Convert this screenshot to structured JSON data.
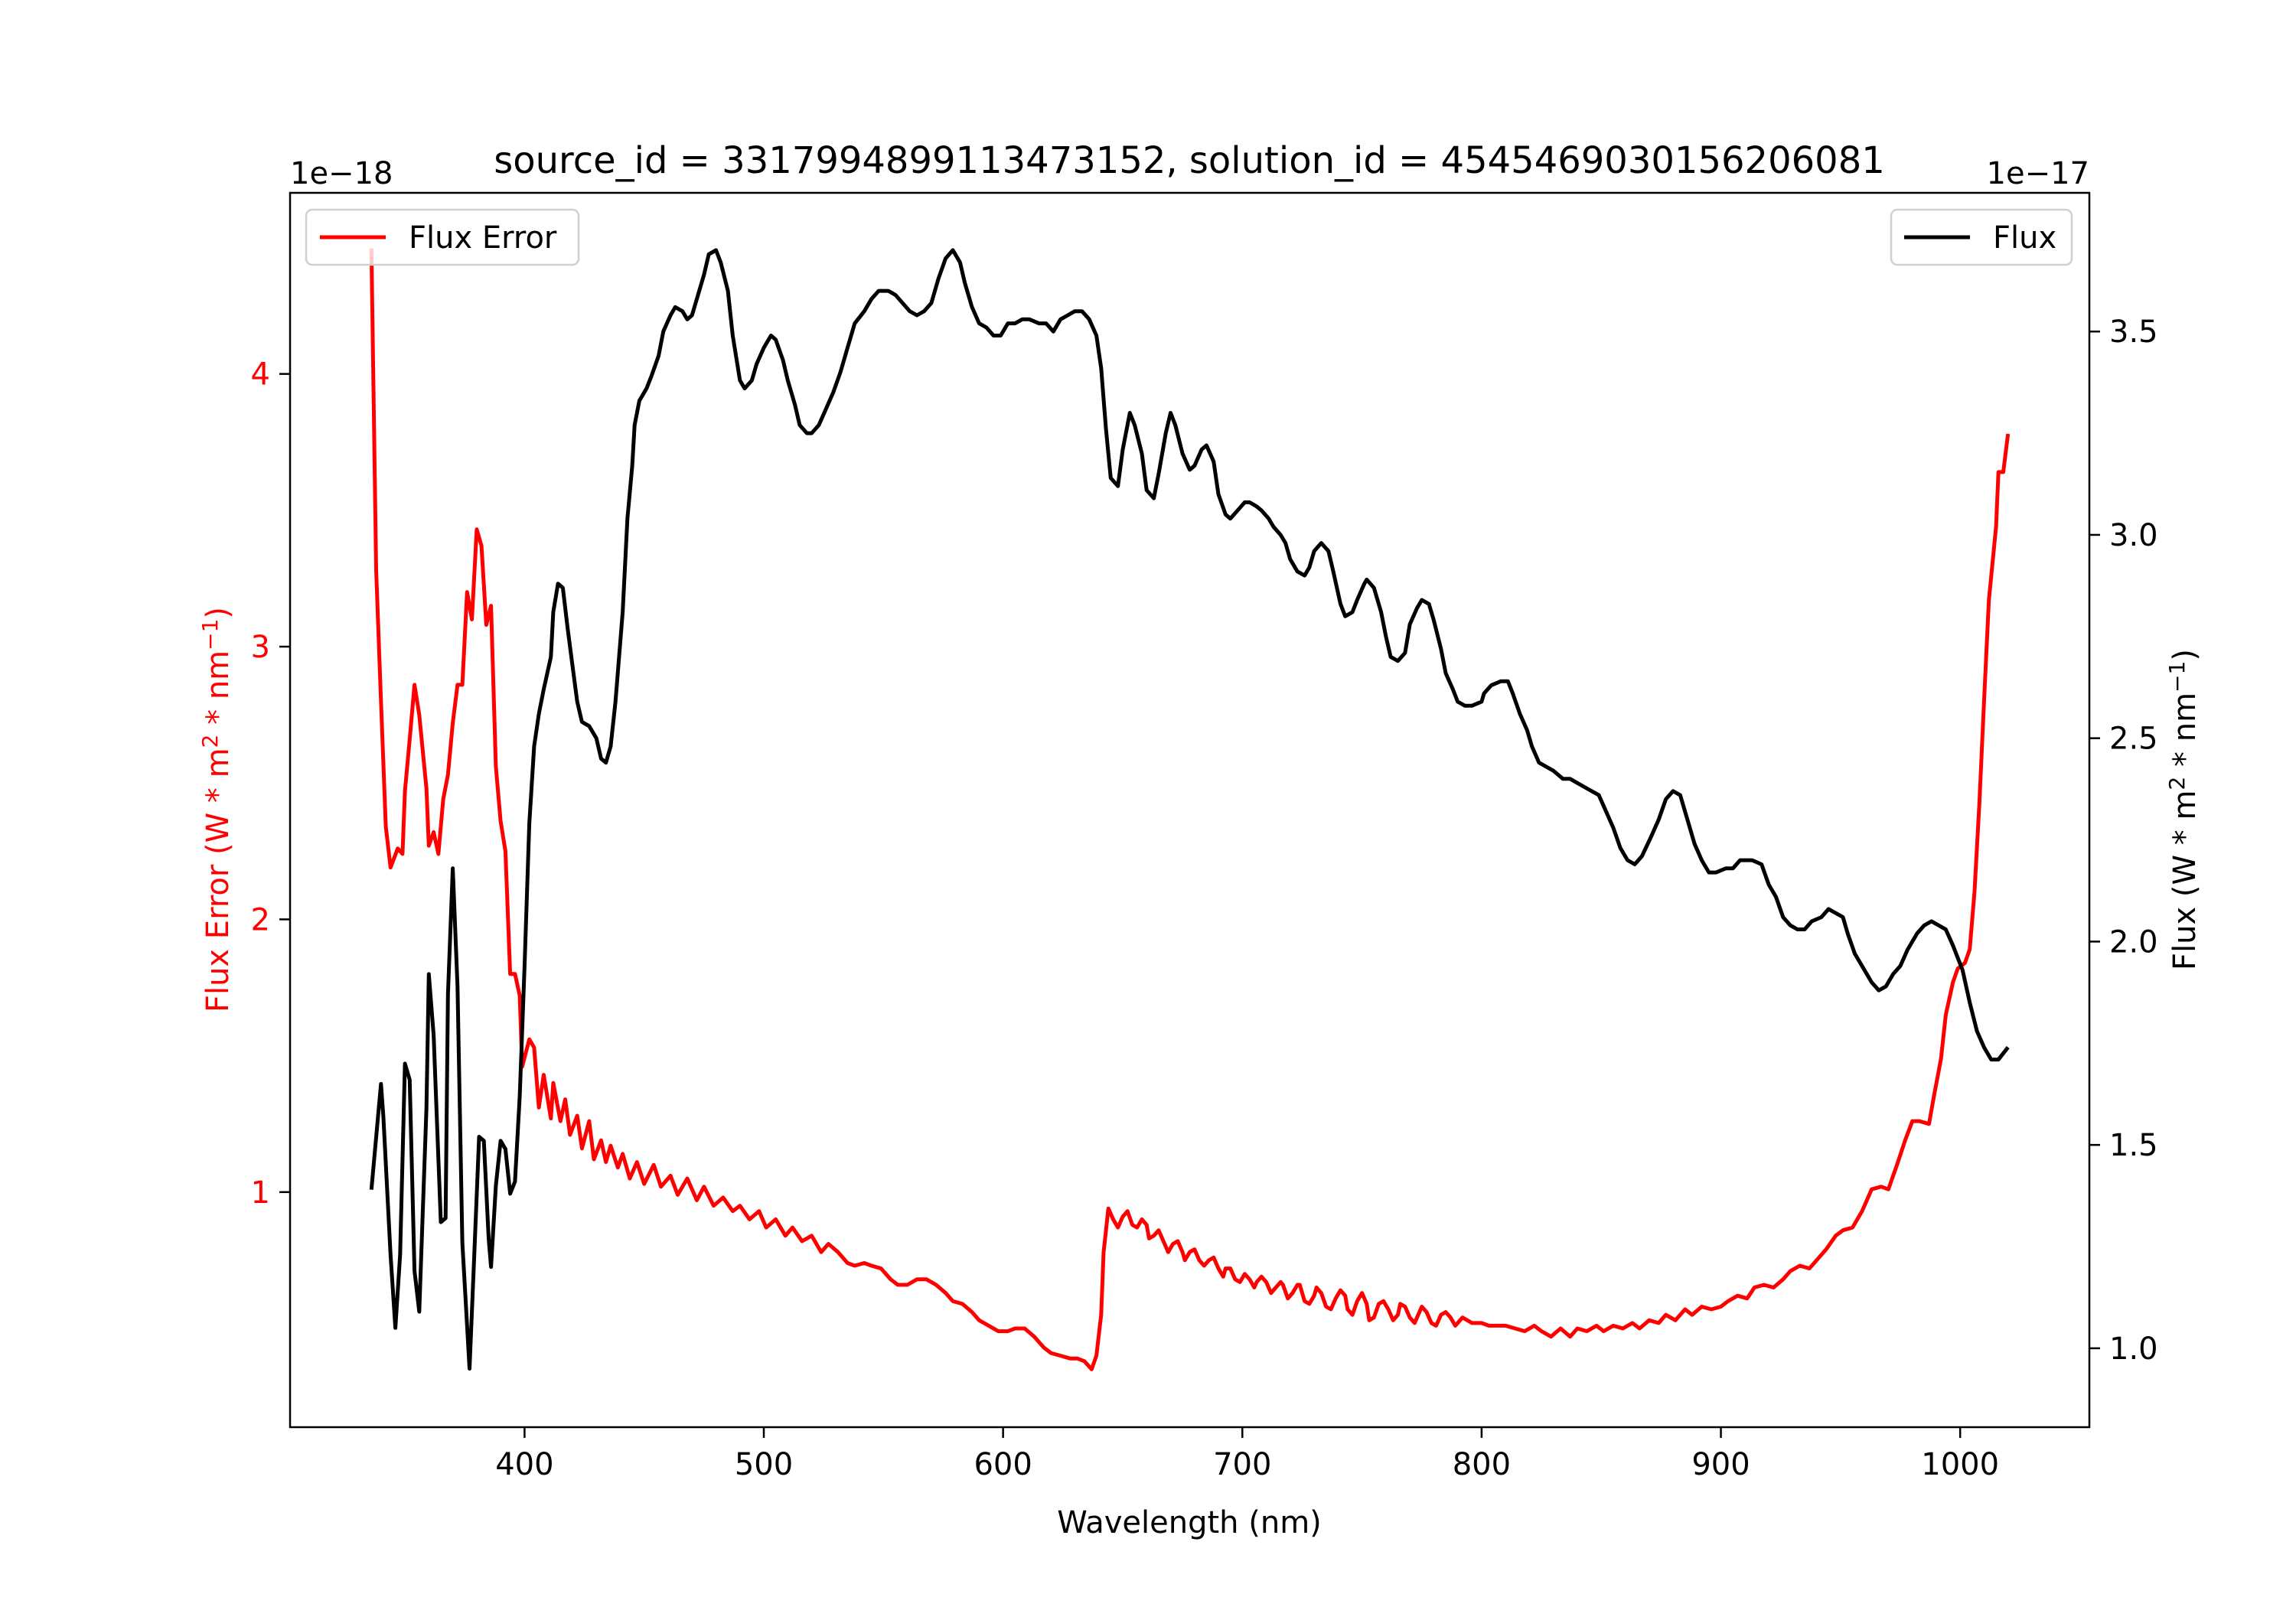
{
  "chart_data": {
    "type": "line",
    "title": "source_id = 3317994899113473152, solution_id = 4545469030156206081",
    "xlabel": "Wavelength (nm)",
    "ylabel_left_parts": [
      "Flux Error (W * m",
      "2",
      " * nm",
      "−1",
      ")"
    ],
    "ylabel_right_parts": [
      "Flux (W * m",
      "2",
      " * nm",
      "−1",
      ")"
    ],
    "offset_left": "1e−18",
    "offset_right": "1e−17",
    "xlim": [
      302,
      1054
    ],
    "ylim_left": [
      0.138,
      4.664
    ],
    "ylim_right": [
      0.806,
      3.841
    ],
    "xticks": [
      "400",
      "500",
      "600",
      "700",
      "800",
      "900",
      "1000"
    ],
    "yticks_left": [
      "1",
      "2",
      "3",
      "4"
    ],
    "yticks_right": [
      "1.0",
      "1.5",
      "2.0",
      "2.5",
      "3.0",
      "3.5"
    ],
    "grid": false,
    "colors": {
      "flux_error": "#ff0000",
      "flux": "#000000"
    },
    "legends": [
      {
        "label": "Flux Error",
        "placement": "upper-left",
        "color": "#ff0000"
      },
      {
        "label": "Flux",
        "placement": "upper-right",
        "color": "#000000"
      }
    ],
    "series": [
      {
        "name": "Flux Error",
        "axis": "left",
        "color": "#ff0000",
        "x": [
          336,
          338,
          340,
          342,
          344,
          347,
          349,
          350,
          352,
          354,
          356,
          359,
          360,
          362,
          364,
          366,
          368,
          370,
          372,
          374,
          376,
          378,
          380,
          382,
          384,
          386,
          388,
          390,
          392,
          394,
          396,
          398,
          399,
          402,
          404,
          406,
          408,
          411,
          412,
          415,
          417,
          419,
          422,
          424,
          427,
          429,
          432,
          434,
          436,
          439,
          441,
          444,
          447,
          450,
          454,
          457,
          461,
          464,
          468,
          472,
          475,
          479,
          483,
          487,
          490,
          494,
          498,
          501,
          505,
          509,
          512,
          516,
          520,
          524,
          527,
          531,
          535,
          538,
          542,
          545,
          549,
          553,
          556,
          560,
          564,
          568,
          572,
          576,
          579,
          583,
          587,
          590,
          594,
          598,
          602,
          605,
          609,
          613,
          617,
          620,
          624,
          628,
          631,
          634,
          637,
          639,
          641,
          642,
          644,
          646,
          648,
          650,
          652,
          654,
          656,
          658,
          660,
          661,
          663,
          665,
          667,
          669,
          671,
          673,
          675,
          676,
          678,
          680,
          682,
          684,
          686,
          688,
          690,
          692,
          693,
          695,
          697,
          699,
          701,
          703,
          705,
          706,
          708,
          710,
          712,
          714,
          716,
          717,
          719,
          721,
          723,
          724,
          726,
          728,
          730,
          731,
          733,
          735,
          737,
          739,
          741,
          743,
          744,
          746,
          748,
          750,
          752,
          753,
          755,
          757,
          759,
          761,
          763,
          765,
          766,
          768,
          770,
          772,
          774,
          775,
          777,
          779,
          781,
          783,
          785,
          787,
          789,
          790,
          792,
          796,
          800,
          803,
          807,
          810,
          814,
          818,
          822,
          825,
          829,
          833,
          837,
          840,
          844,
          848,
          851,
          855,
          859,
          863,
          866,
          870,
          874,
          877,
          881,
          885,
          888,
          892,
          896,
          900,
          903,
          907,
          911,
          914,
          918,
          922,
          926,
          929,
          933,
          937,
          940,
          944,
          948,
          951,
          955,
          959,
          963,
          967,
          970,
          974,
          977,
          980,
          983,
          987,
          989,
          992,
          994,
          997,
          999,
          1002,
          1004,
          1006,
          1008,
          1010,
          1012,
          1015,
          1016,
          1018,
          1020
        ],
        "y": [
          4.46,
          3.28,
          2.8,
          2.34,
          2.19,
          2.26,
          2.24,
          2.47,
          2.66,
          2.86,
          2.75,
          2.48,
          2.27,
          2.32,
          2.24,
          2.44,
          2.53,
          2.72,
          2.86,
          2.86,
          3.2,
          3.1,
          3.43,
          3.37,
          3.08,
          3.15,
          2.56,
          2.36,
          2.25,
          1.8,
          1.8,
          1.72,
          1.46,
          1.56,
          1.53,
          1.31,
          1.43,
          1.27,
          1.4,
          1.26,
          1.34,
          1.21,
          1.28,
          1.16,
          1.26,
          1.12,
          1.19,
          1.11,
          1.17,
          1.09,
          1.14,
          1.05,
          1.11,
          1.03,
          1.1,
          1.02,
          1.06,
          0.99,
          1.05,
          0.97,
          1.02,
          0.95,
          0.98,
          0.93,
          0.95,
          0.9,
          0.93,
          0.87,
          0.9,
          0.84,
          0.87,
          0.82,
          0.84,
          0.78,
          0.81,
          0.78,
          0.74,
          0.73,
          0.74,
          0.73,
          0.72,
          0.68,
          0.66,
          0.66,
          0.68,
          0.68,
          0.66,
          0.63,
          0.6,
          0.59,
          0.56,
          0.53,
          0.51,
          0.49,
          0.49,
          0.5,
          0.5,
          0.47,
          0.43,
          0.41,
          0.4,
          0.39,
          0.39,
          0.38,
          0.35,
          0.4,
          0.55,
          0.78,
          0.94,
          0.9,
          0.87,
          0.91,
          0.93,
          0.88,
          0.87,
          0.9,
          0.88,
          0.83,
          0.84,
          0.86,
          0.82,
          0.78,
          0.81,
          0.82,
          0.78,
          0.75,
          0.78,
          0.79,
          0.75,
          0.73,
          0.75,
          0.76,
          0.72,
          0.69,
          0.72,
          0.72,
          0.68,
          0.67,
          0.7,
          0.68,
          0.65,
          0.67,
          0.69,
          0.67,
          0.63,
          0.65,
          0.67,
          0.66,
          0.61,
          0.63,
          0.66,
          0.66,
          0.6,
          0.59,
          0.62,
          0.65,
          0.63,
          0.58,
          0.57,
          0.61,
          0.64,
          0.62,
          0.57,
          0.55,
          0.6,
          0.63,
          0.59,
          0.53,
          0.54,
          0.59,
          0.6,
          0.57,
          0.53,
          0.55,
          0.59,
          0.58,
          0.54,
          0.52,
          0.56,
          0.58,
          0.56,
          0.52,
          0.51,
          0.55,
          0.56,
          0.54,
          0.51,
          0.52,
          0.54,
          0.52,
          0.52,
          0.51,
          0.51,
          0.51,
          0.5,
          0.49,
          0.51,
          0.49,
          0.47,
          0.5,
          0.47,
          0.5,
          0.49,
          0.51,
          0.49,
          0.51,
          0.5,
          0.52,
          0.5,
          0.53,
          0.52,
          0.55,
          0.53,
          0.57,
          0.55,
          0.58,
          0.57,
          0.58,
          0.6,
          0.62,
          0.61,
          0.65,
          0.66,
          0.65,
          0.68,
          0.71,
          0.73,
          0.72,
          0.75,
          0.79,
          0.84,
          0.86,
          0.87,
          0.93,
          1.01,
          1.02,
          1.01,
          1.11,
          1.19,
          1.26,
          1.26,
          1.25,
          1.35,
          1.49,
          1.65,
          1.77,
          1.82,
          1.84,
          1.89,
          2.1,
          2.42,
          2.8,
          3.17,
          3.44,
          3.64,
          3.64,
          3.78
        ]
      },
      {
        "name": "Flux",
        "axis": "right",
        "color": "#000000",
        "x": [
          336,
          340,
          341,
          344,
          346,
          348,
          350,
          352,
          354,
          356,
          359,
          360,
          362,
          365,
          367,
          368,
          370,
          372,
          374,
          377,
          379,
          381,
          383,
          385,
          386,
          388,
          390,
          392,
          394,
          396,
          398,
          400,
          402,
          404,
          406,
          408,
          411,
          412,
          414,
          416,
          418,
          420,
          422,
          424,
          427,
          430,
          432,
          434,
          436,
          438,
          441,
          443,
          445,
          446,
          448,
          451,
          453,
          456,
          458,
          461,
          463,
          466,
          468,
          470,
          472,
          475,
          477,
          480,
          482,
          485,
          487,
          490,
          492,
          495,
          497,
          500,
          503,
          505,
          508,
          510,
          513,
          515,
          518,
          520,
          523,
          526,
          529,
          532,
          535,
          538,
          542,
          545,
          548,
          552,
          555,
          558,
          561,
          564,
          567,
          570,
          573,
          576,
          579,
          582,
          584,
          587,
          590,
          593,
          596,
          599,
          602,
          605,
          608,
          611,
          615,
          618,
          621,
          624,
          627,
          630,
          633,
          636,
          639,
          641,
          643,
          645,
          648,
          650,
          653,
          655,
          658,
          660,
          663,
          665,
          668,
          670,
          672,
          675,
          678,
          680,
          683,
          685,
          688,
          690,
          693,
          695,
          698,
          701,
          703,
          706,
          708,
          711,
          713,
          716,
          718,
          720,
          723,
          726,
          728,
          730,
          733,
          736,
          738,
          741,
          743,
          746,
          748,
          751,
          752,
          755,
          758,
          760,
          762,
          765,
          768,
          770,
          773,
          775,
          778,
          780,
          783,
          785,
          788,
          790,
          793,
          796,
          800,
          801,
          804,
          808,
          811,
          813,
          816,
          819,
          821,
          824,
          827,
          830,
          834,
          837,
          840,
          843,
          846,
          849,
          852,
          855,
          858,
          861,
          864,
          867,
          871,
          874,
          877,
          880,
          883,
          886,
          889,
          892,
          895,
          898,
          902,
          905,
          908,
          911,
          913,
          917,
          920,
          923,
          926,
          929,
          932,
          935,
          938,
          942,
          945,
          948,
          951,
          953,
          956,
          960,
          963,
          966,
          969,
          972,
          975,
          978,
          982,
          985,
          988,
          991,
          994,
          997,
          1001,
          1004,
          1007,
          1010,
          1013,
          1016,
          1020
        ],
        "y": [
          1.39,
          1.65,
          1.57,
          1.23,
          1.05,
          1.23,
          1.7,
          1.66,
          1.19,
          1.09,
          1.59,
          1.92,
          1.77,
          1.31,
          1.32,
          1.87,
          2.18,
          1.89,
          1.26,
          0.95,
          1.23,
          1.52,
          1.51,
          1.27,
          1.2,
          1.4,
          1.51,
          1.49,
          1.38,
          1.41,
          1.62,
          1.94,
          2.29,
          2.48,
          2.56,
          2.62,
          2.7,
          2.81,
          2.88,
          2.87,
          2.77,
          2.68,
          2.59,
          2.54,
          2.53,
          2.5,
          2.45,
          2.44,
          2.48,
          2.59,
          2.81,
          3.04,
          3.17,
          3.27,
          3.33,
          3.36,
          3.39,
          3.44,
          3.5,
          3.54,
          3.56,
          3.55,
          3.53,
          3.54,
          3.58,
          3.64,
          3.69,
          3.7,
          3.67,
          3.6,
          3.49,
          3.38,
          3.36,
          3.38,
          3.42,
          3.46,
          3.49,
          3.48,
          3.43,
          3.38,
          3.32,
          3.27,
          3.25,
          3.25,
          3.27,
          3.31,
          3.35,
          3.4,
          3.46,
          3.52,
          3.55,
          3.58,
          3.6,
          3.6,
          3.59,
          3.57,
          3.55,
          3.54,
          3.55,
          3.57,
          3.63,
          3.68,
          3.7,
          3.67,
          3.62,
          3.56,
          3.52,
          3.51,
          3.49,
          3.49,
          3.52,
          3.52,
          3.53,
          3.53,
          3.52,
          3.52,
          3.5,
          3.53,
          3.54,
          3.55,
          3.55,
          3.53,
          3.49,
          3.41,
          3.26,
          3.14,
          3.12,
          3.21,
          3.3,
          3.27,
          3.2,
          3.11,
          3.09,
          3.15,
          3.25,
          3.3,
          3.27,
          3.2,
          3.16,
          3.17,
          3.21,
          3.22,
          3.18,
          3.1,
          3.05,
          3.04,
          3.06,
          3.08,
          3.08,
          3.07,
          3.06,
          3.04,
          3.02,
          3.0,
          2.98,
          2.94,
          2.91,
          2.9,
          2.92,
          2.96,
          2.98,
          2.96,
          2.91,
          2.83,
          2.8,
          2.81,
          2.84,
          2.88,
          2.89,
          2.87,
          2.81,
          2.75,
          2.7,
          2.69,
          2.71,
          2.78,
          2.82,
          2.84,
          2.83,
          2.79,
          2.72,
          2.66,
          2.62,
          2.59,
          2.58,
          2.58,
          2.59,
          2.61,
          2.63,
          2.64,
          2.64,
          2.61,
          2.56,
          2.52,
          2.48,
          2.44,
          2.43,
          2.42,
          2.4,
          2.4,
          2.39,
          2.38,
          2.37,
          2.36,
          2.32,
          2.28,
          2.23,
          2.2,
          2.19,
          2.21,
          2.26,
          2.3,
          2.35,
          2.37,
          2.36,
          2.3,
          2.24,
          2.2,
          2.17,
          2.17,
          2.18,
          2.18,
          2.2,
          2.2,
          2.2,
          2.19,
          2.14,
          2.11,
          2.06,
          2.04,
          2.03,
          2.03,
          2.05,
          2.06,
          2.08,
          2.07,
          2.06,
          2.02,
          1.97,
          1.93,
          1.9,
          1.88,
          1.89,
          1.92,
          1.94,
          1.98,
          2.02,
          2.04,
          2.05,
          2.04,
          2.03,
          1.99,
          1.93,
          1.85,
          1.78,
          1.74,
          1.71,
          1.71,
          1.74
        ]
      }
    ]
  }
}
